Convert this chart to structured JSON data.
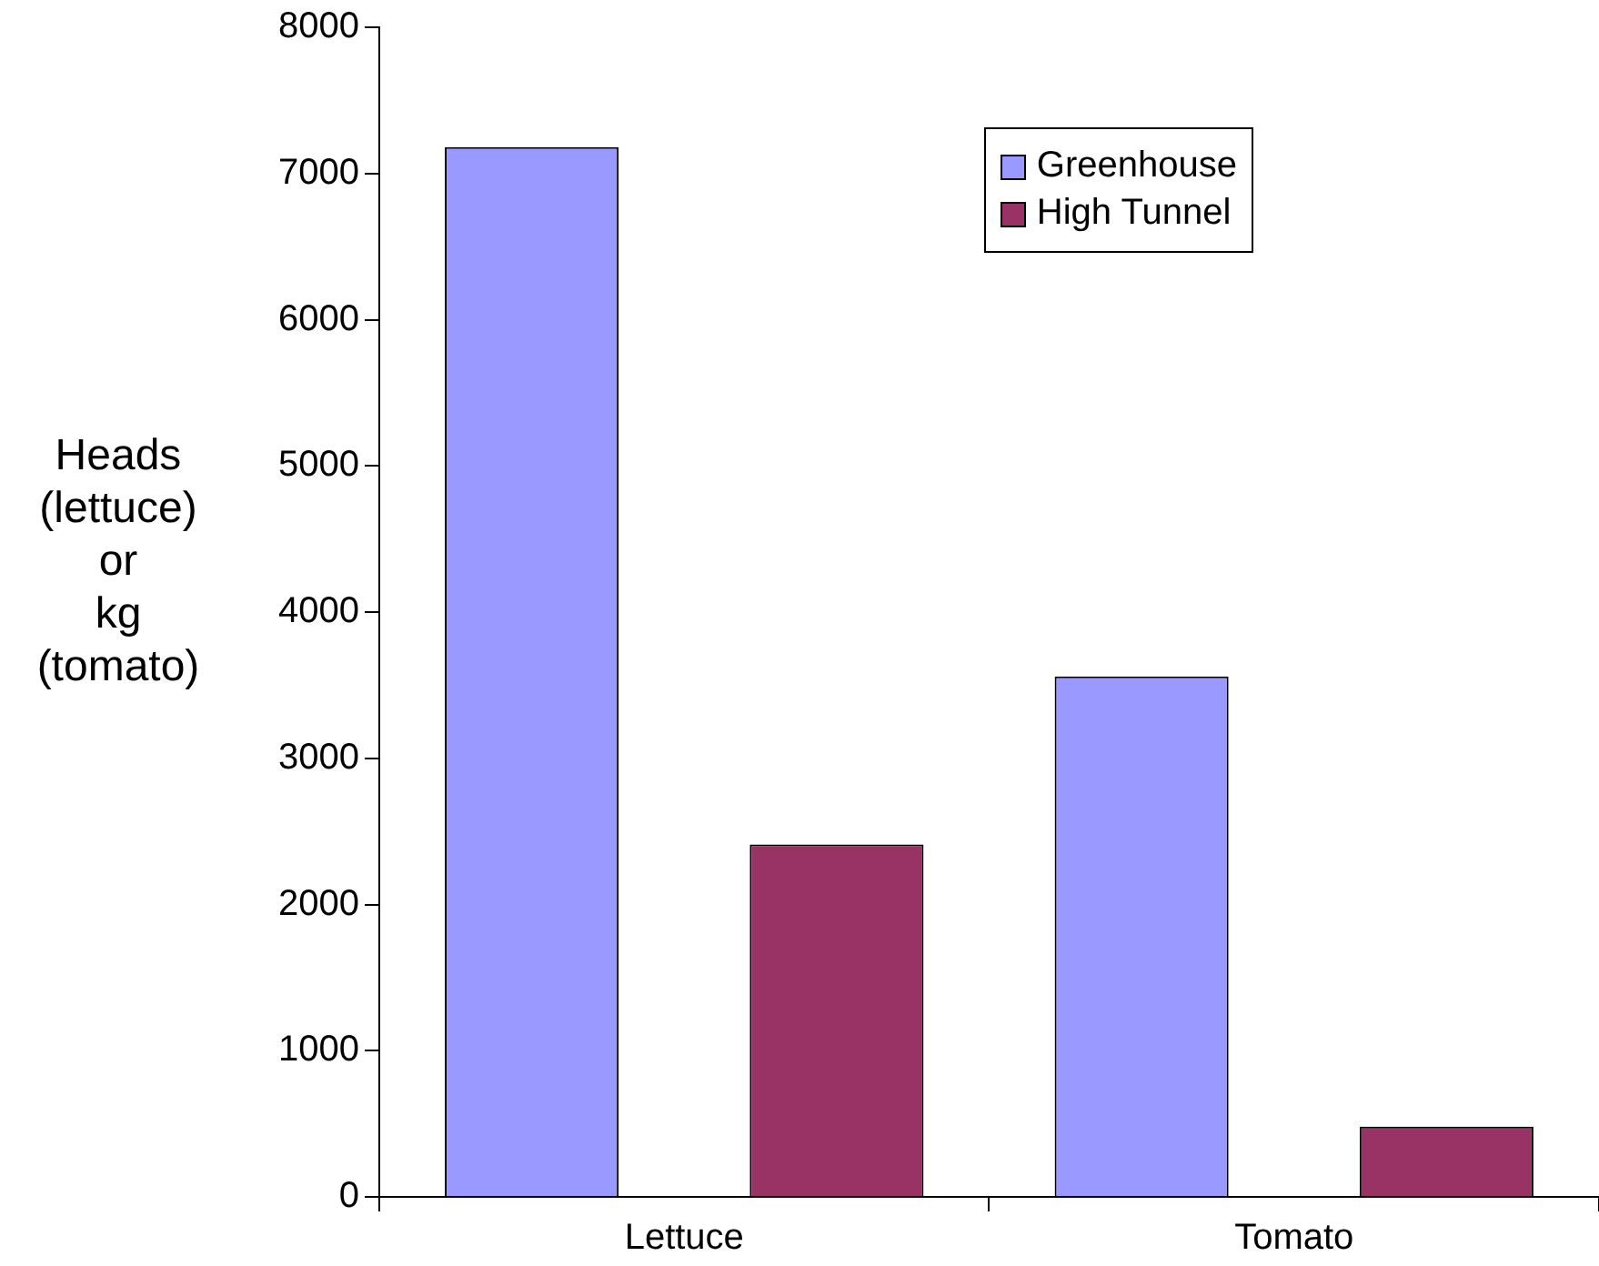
{
  "chart_data": {
    "type": "bar",
    "ylabel": "Heads (lettuce) or kg (tomato)",
    "categories": [
      "Lettuce",
      "Tomato"
    ],
    "series": [
      {
        "name": "Greenhouse",
        "color": "#9999ff",
        "values": [
          7180,
          3560
        ]
      },
      {
        "name": "High Tunnel",
        "color": "#993366",
        "values": [
          2410,
          480
        ]
      }
    ],
    "ylim": [
      0,
      8000
    ],
    "yticks": [
      0,
      1000,
      2000,
      3000,
      4000,
      5000,
      6000,
      7000,
      8000
    ],
    "grid": false,
    "legend": "top right"
  }
}
